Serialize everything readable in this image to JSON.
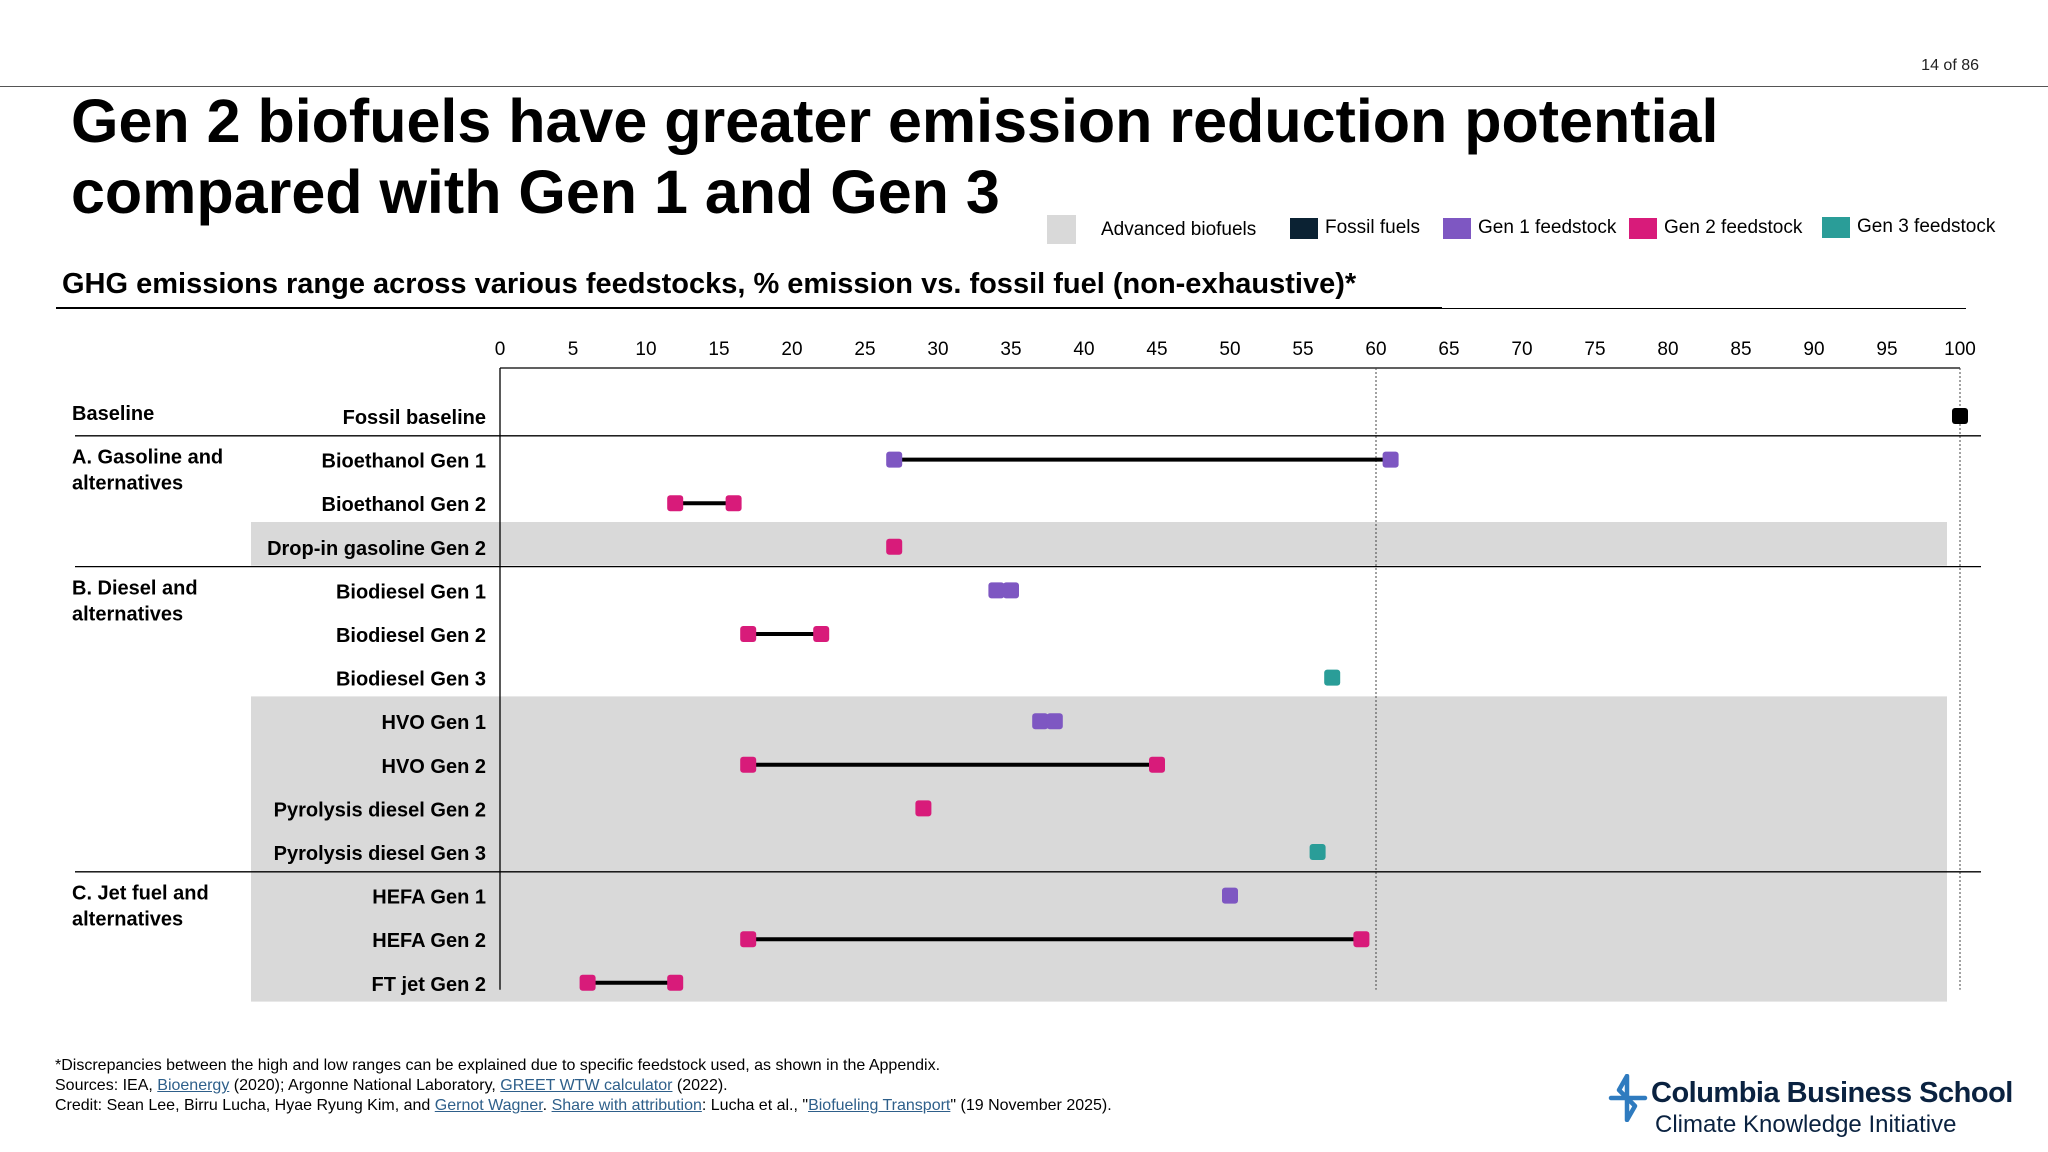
{
  "page_number": "14 of 86",
  "title_lines": [
    "Gen 2 biofuels have greater emission reduction potential",
    "compared with Gen 1 and Gen 3"
  ],
  "subtitle": "GHG emissions range across various feedstocks, % emission vs. fossil fuel (non-exhaustive)*",
  "legend": [
    {
      "label": "Advanced biofuels",
      "color": "#d9d9d9"
    },
    {
      "label": "Fossil fuels",
      "color": "#0b2233"
    },
    {
      "label": "Gen 1 feedstock",
      "color": "#7e57c2"
    },
    {
      "label": "Gen 2 feedstock",
      "color": "#d81b7a"
    },
    {
      "label": "Gen 3 feedstock",
      "color": "#2a9d98"
    }
  ],
  "chart_data": {
    "type": "range-dot",
    "x_ticks": [
      0,
      5,
      10,
      15,
      20,
      25,
      30,
      35,
      40,
      45,
      50,
      55,
      60,
      65,
      70,
      75,
      80,
      85,
      90,
      95,
      100
    ],
    "xlim": [
      0,
      100
    ],
    "reference_line": 60,
    "colors": {
      "fossil": "#000000",
      "gen1": "#7e57c2",
      "gen2": "#d81b7a",
      "gen3": "#2a9d98"
    },
    "groups": [
      {
        "label_lines": [
          "Baseline"
        ],
        "rows": [
          0
        ]
      },
      {
        "label_lines": [
          "A. Gasoline and",
          "alternatives"
        ],
        "rows": [
          1,
          2,
          3
        ]
      },
      {
        "label_lines": [
          "B. Diesel and",
          "alternatives"
        ],
        "rows": [
          4,
          5,
          6,
          7,
          8,
          9,
          10
        ]
      },
      {
        "label_lines": [
          "C. Jet fuel and",
          "alternatives"
        ],
        "rows": [
          11,
          12,
          13
        ]
      }
    ],
    "rows": [
      {
        "label": "Fossil baseline",
        "series": "fossil",
        "low": 100,
        "high": 100,
        "advanced": false
      },
      {
        "label": "Bioethanol Gen 1",
        "series": "gen1",
        "low": 27,
        "high": 61,
        "advanced": false
      },
      {
        "label": "Bioethanol Gen 2",
        "series": "gen2",
        "low": 12,
        "high": 16,
        "advanced": false
      },
      {
        "label": "Drop-in gasoline Gen 2",
        "series": "gen2",
        "low": 27,
        "high": 27,
        "advanced": true
      },
      {
        "label": "Biodiesel Gen 1",
        "series": "gen1",
        "low": 34,
        "high": 35,
        "advanced": false
      },
      {
        "label": "Biodiesel Gen 2",
        "series": "gen2",
        "low": 17,
        "high": 22,
        "advanced": false
      },
      {
        "label": "Biodiesel Gen 3",
        "series": "gen3",
        "low": 57,
        "high": 57,
        "advanced": false
      },
      {
        "label": "HVO Gen 1",
        "series": "gen1",
        "low": 37,
        "high": 38,
        "advanced": true
      },
      {
        "label": "HVO Gen 2",
        "series": "gen2",
        "low": 17,
        "high": 45,
        "advanced": true
      },
      {
        "label": "Pyrolysis diesel Gen 2",
        "series": "gen2",
        "low": 29,
        "high": 29,
        "advanced": true
      },
      {
        "label": "Pyrolysis diesel Gen 3",
        "series": "gen3",
        "low": 56,
        "high": 56,
        "advanced": true
      },
      {
        "label": "HEFA Gen 1",
        "series": "gen1",
        "low": 50,
        "high": 50,
        "advanced": true
      },
      {
        "label": "HEFA Gen 2",
        "series": "gen2",
        "low": 17,
        "high": 59,
        "advanced": true
      },
      {
        "label": "FT jet Gen 2",
        "series": "gen2",
        "low": 6,
        "high": 12,
        "advanced": true
      }
    ]
  },
  "footnotes": {
    "note": "*Discrepancies between the high and low ranges can be explained due to specific feedstock used, as shown in the Appendix.",
    "sources_prefix": "Sources: IEA, ",
    "sources_link1": "Bioenergy",
    "sources_mid": " (2020); Argonne National Laboratory, ",
    "sources_link2": "GREET WTW calculator",
    "sources_suffix": " (2022).",
    "credit_prefix": "Credit: Sean Lee, Birru Lucha, Hyae Ryung Kim, and ",
    "credit_link1": "Gernot Wagner",
    "credit_sep": ". ",
    "credit_link2": "Share with attribution",
    "credit_mid": ": Lucha et al., \"",
    "credit_link3": "Biofueling Transport",
    "credit_suffix": "\" (19 November 2025)."
  },
  "logo": {
    "line1": "Columbia Business School",
    "line2": "Climate Knowledge Initiative",
    "icon": "columbia-crown-cross-icon"
  }
}
